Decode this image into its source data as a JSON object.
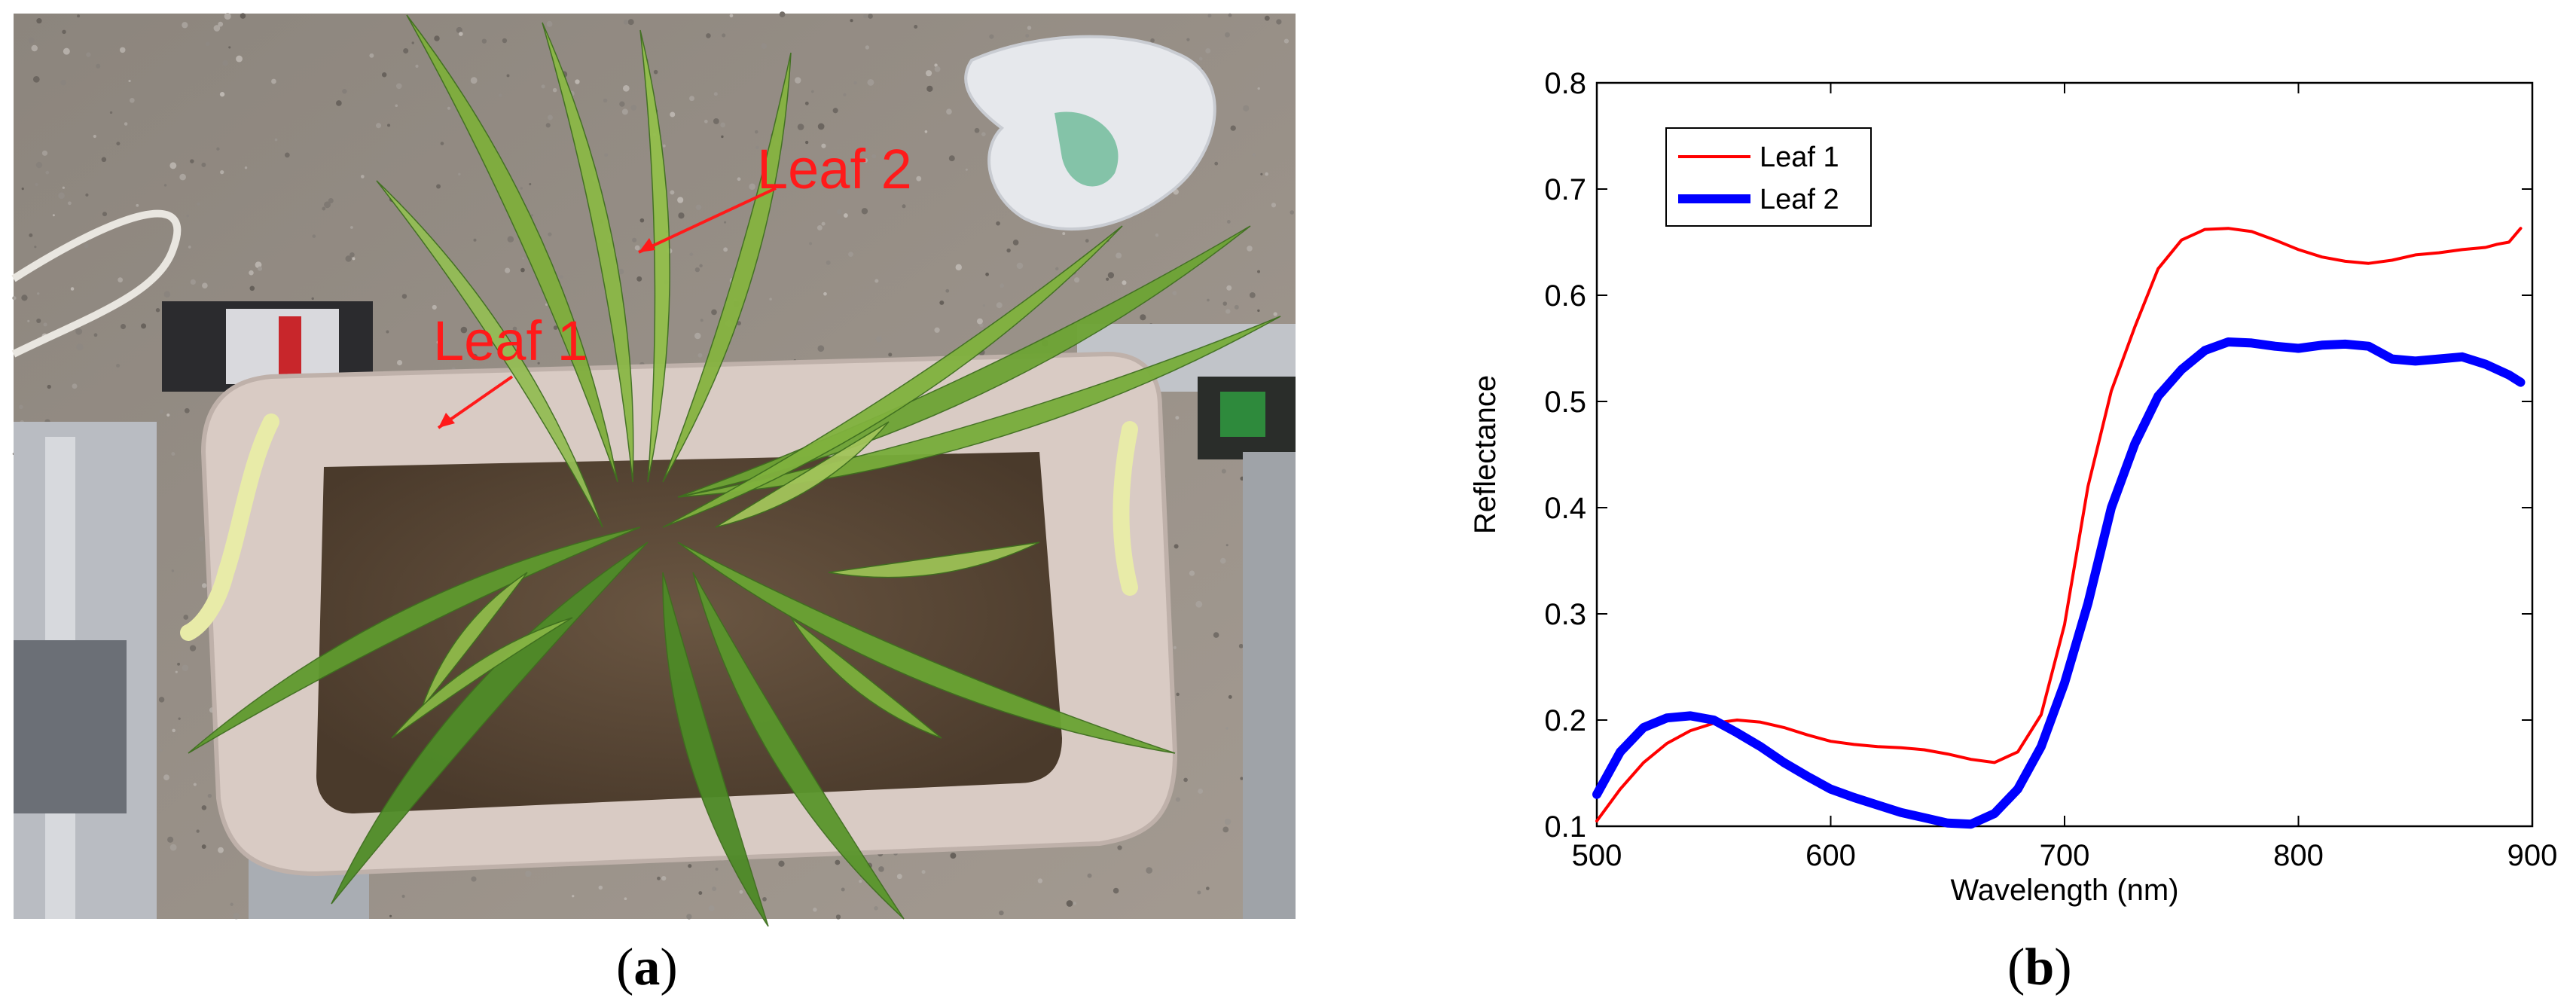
{
  "photo": {
    "annotations": [
      {
        "label": "Leaf 1"
      },
      {
        "label": "Leaf 2"
      }
    ],
    "annotation_color": "#ff1a1a"
  },
  "captions": {
    "a": {
      "letter": "a"
    },
    "b": {
      "letter": "b"
    }
  },
  "chart_data": {
    "type": "line",
    "title": "",
    "xlabel": "Wavelength (nm)",
    "ylabel": "Reflectance",
    "xlim": [
      500,
      900
    ],
    "ylim": [
      0.1,
      0.8
    ],
    "xticks": [
      500,
      600,
      700,
      800,
      900
    ],
    "yticks": [
      0.1,
      0.2,
      0.3,
      0.4,
      0.5,
      0.6,
      0.7,
      0.8
    ],
    "grid": false,
    "legend_position": "top-left",
    "series": [
      {
        "name": "Leaf 1",
        "color": "#ff0000",
        "x": [
          500,
          510,
          520,
          530,
          540,
          550,
          560,
          570,
          580,
          590,
          600,
          610,
          620,
          630,
          640,
          650,
          660,
          670,
          680,
          690,
          700,
          710,
          720,
          730,
          740,
          750,
          760,
          770,
          780,
          790,
          800,
          810,
          820,
          830,
          840,
          850,
          860,
          870,
          880,
          885,
          890,
          895
        ],
        "values": [
          0.105,
          0.135,
          0.16,
          0.178,
          0.19,
          0.197,
          0.2,
          0.198,
          0.193,
          0.186,
          0.18,
          0.177,
          0.175,
          0.174,
          0.172,
          0.168,
          0.163,
          0.16,
          0.17,
          0.205,
          0.29,
          0.42,
          0.51,
          0.57,
          0.625,
          0.652,
          0.662,
          0.663,
          0.66,
          0.652,
          0.643,
          0.636,
          0.632,
          0.63,
          0.633,
          0.638,
          0.64,
          0.643,
          0.645,
          0.648,
          0.65,
          0.663
        ]
      },
      {
        "name": "Leaf 2",
        "color": "#0000ff",
        "x": [
          500,
          510,
          520,
          530,
          540,
          550,
          560,
          570,
          580,
          590,
          600,
          610,
          620,
          630,
          640,
          650,
          660,
          670,
          680,
          690,
          700,
          710,
          720,
          730,
          740,
          750,
          760,
          770,
          780,
          790,
          800,
          810,
          820,
          830,
          840,
          850,
          860,
          870,
          880,
          890,
          895
        ],
        "values": [
          0.13,
          0.17,
          0.193,
          0.202,
          0.204,
          0.2,
          0.188,
          0.175,
          0.16,
          0.147,
          0.135,
          0.127,
          0.12,
          0.113,
          0.108,
          0.103,
          0.102,
          0.112,
          0.135,
          0.175,
          0.235,
          0.31,
          0.4,
          0.46,
          0.505,
          0.53,
          0.548,
          0.556,
          0.555,
          0.552,
          0.55,
          0.553,
          0.554,
          0.552,
          0.54,
          0.538,
          0.54,
          0.542,
          0.535,
          0.525,
          0.518
        ]
      }
    ]
  }
}
